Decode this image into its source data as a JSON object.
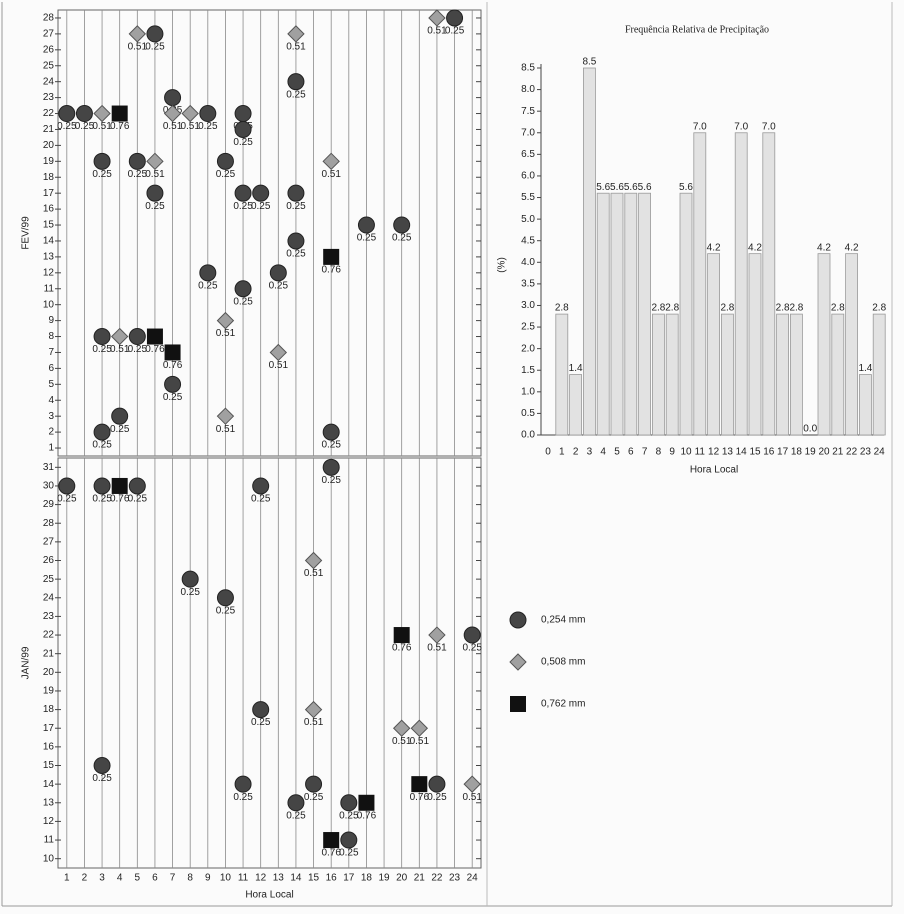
{
  "chart_data": [
    {
      "type": "scatter",
      "xlabel": "Hora Local",
      "xlim": [
        0.5,
        24.5
      ],
      "xticks": [
        1,
        2,
        3,
        4,
        5,
        6,
        7,
        8,
        9,
        10,
        11,
        12,
        13,
        14,
        15,
        16,
        17,
        18,
        19,
        20,
        21,
        22,
        23,
        24
      ],
      "series": [
        {
          "name": "0,254 mm",
          "color": "#454545",
          "marker": "circle",
          "point_label": "0.25"
        },
        {
          "name": "0,508 mm",
          "color": "#a0a0a0",
          "marker": "diamond",
          "point_label": "0.51"
        },
        {
          "name": "0,762 mm",
          "color": "#111111",
          "marker": "square",
          "point_label": "0.76"
        }
      ],
      "panels": [
        {
          "ylabel": "FEV/99",
          "ylim": [
            0.5,
            28.5
          ],
          "yticks": [
            1,
            2,
            3,
            4,
            5,
            6,
            7,
            8,
            9,
            10,
            11,
            12,
            13,
            14,
            15,
            16,
            17,
            18,
            19,
            20,
            21,
            22,
            23,
            24,
            25,
            26,
            27,
            28
          ],
          "series": [
            {
              "x": [
                1,
                2,
                3,
                5,
                6,
                6,
                7,
                9,
                10,
                11,
                11,
                11,
                12,
                14,
                14,
                14,
                18,
                20,
                13,
                9,
                11,
                3,
                5,
                7,
                4,
                3,
                16,
                23
              ],
              "values": [
                22,
                22,
                19,
                19,
                17,
                27,
                23,
                22,
                19,
                22,
                21,
                17,
                17,
                24,
                17,
                14,
                15,
                15,
                12,
                12,
                11,
                8,
                8,
                5,
                3,
                2,
                2,
                28
              ]
            },
            {
              "x": [
                3,
                5,
                6,
                7,
                8,
                14,
                16,
                10,
                4,
                13,
                10,
                22
              ],
              "values": [
                22,
                27,
                19,
                22,
                22,
                27,
                19,
                9,
                8,
                7,
                3,
                28
              ]
            },
            {
              "x": [
                4,
                16,
                6,
                7
              ],
              "values": [
                22,
                13,
                8,
                7
              ]
            }
          ]
        },
        {
          "ylabel": "JAN/99",
          "ylim": [
            9.5,
            31.5
          ],
          "yticks": [
            10,
            11,
            12,
            13,
            14,
            15,
            16,
            17,
            18,
            19,
            20,
            21,
            22,
            23,
            24,
            25,
            26,
            27,
            28,
            29,
            30,
            31
          ],
          "series": [
            {
              "x": [
                1,
                3,
                5,
                12,
                16,
                8,
                10,
                24,
                12,
                3,
                11,
                15,
                22,
                14,
                17,
                17
              ],
              "values": [
                30,
                30,
                30,
                30,
                31,
                25,
                24,
                22,
                18,
                15,
                14,
                14,
                14,
                13,
                13,
                11
              ]
            },
            {
              "x": [
                15,
                22,
                15,
                20,
                21,
                24
              ],
              "values": [
                26,
                22,
                18,
                17,
                17,
                14
              ]
            },
            {
              "x": [
                4,
                20,
                21,
                18,
                16
              ],
              "values": [
                30,
                22,
                14,
                13,
                11
              ]
            }
          ]
        }
      ]
    },
    {
      "type": "bar",
      "title": "Frequência Relativa de Precipitação",
      "ylabel": "(%)",
      "xlabel": "Hora Local",
      "color": "#e2e2e2",
      "categories": [
        "0",
        "1",
        "2",
        "3",
        "4",
        "5",
        "6",
        "7",
        "8",
        "9",
        "10",
        "11",
        "12",
        "13",
        "14",
        "15",
        "16",
        "17",
        "18",
        "19",
        "20",
        "21",
        "22",
        "23",
        "24"
      ],
      "values": [
        null,
        2.8,
        1.4,
        8.5,
        5.6,
        5.6,
        5.6,
        5.6,
        2.8,
        2.8,
        5.6,
        7.0,
        4.2,
        2.8,
        7.0,
        4.2,
        7.0,
        2.8,
        2.8,
        0.0,
        4.2,
        2.8,
        4.2,
        1.4,
        2.8
      ],
      "value_labels": [
        null,
        "2.8",
        "1.4",
        "8.5",
        "5.6",
        "5.6",
        "5.6",
        "5.6",
        "2.8",
        "2.8",
        "5.6",
        "7.0",
        "4.2",
        "2.8",
        "7.0",
        "4.2",
        "7.0",
        "2.8",
        "2.8",
        "0.0",
        "4.2",
        "2.8",
        "4.2",
        "1.4",
        "2.8"
      ],
      "ylim": [
        0,
        8.5
      ],
      "yticks": [
        {
          "value": 0,
          "label": "0.0"
        },
        {
          "value": 0.5,
          "label": "0.5"
        },
        {
          "value": 1,
          "label": "1.0"
        },
        {
          "value": 1.5,
          "label": "1.5"
        },
        {
          "value": 2,
          "label": "2.0"
        },
        {
          "value": 2.5,
          "label": "2.5"
        },
        {
          "value": 3,
          "label": "3.0"
        },
        {
          "value": 3.5,
          "label": "3.5"
        },
        {
          "value": 4,
          "label": "4.0"
        },
        {
          "value": 4.5,
          "label": "4.5"
        },
        {
          "value": 5,
          "label": "5.0"
        },
        {
          "value": 5.5,
          "label": "5.5"
        },
        {
          "value": 6,
          "label": "6.0"
        },
        {
          "value": 6.5,
          "label": "6.5"
        },
        {
          "value": 7,
          "label": "7.0"
        },
        {
          "value": 7.5,
          "label": "7.5"
        },
        {
          "value": 8,
          "label": "8.0"
        },
        {
          "value": 8.5,
          "label": "8.5"
        }
      ]
    }
  ]
}
